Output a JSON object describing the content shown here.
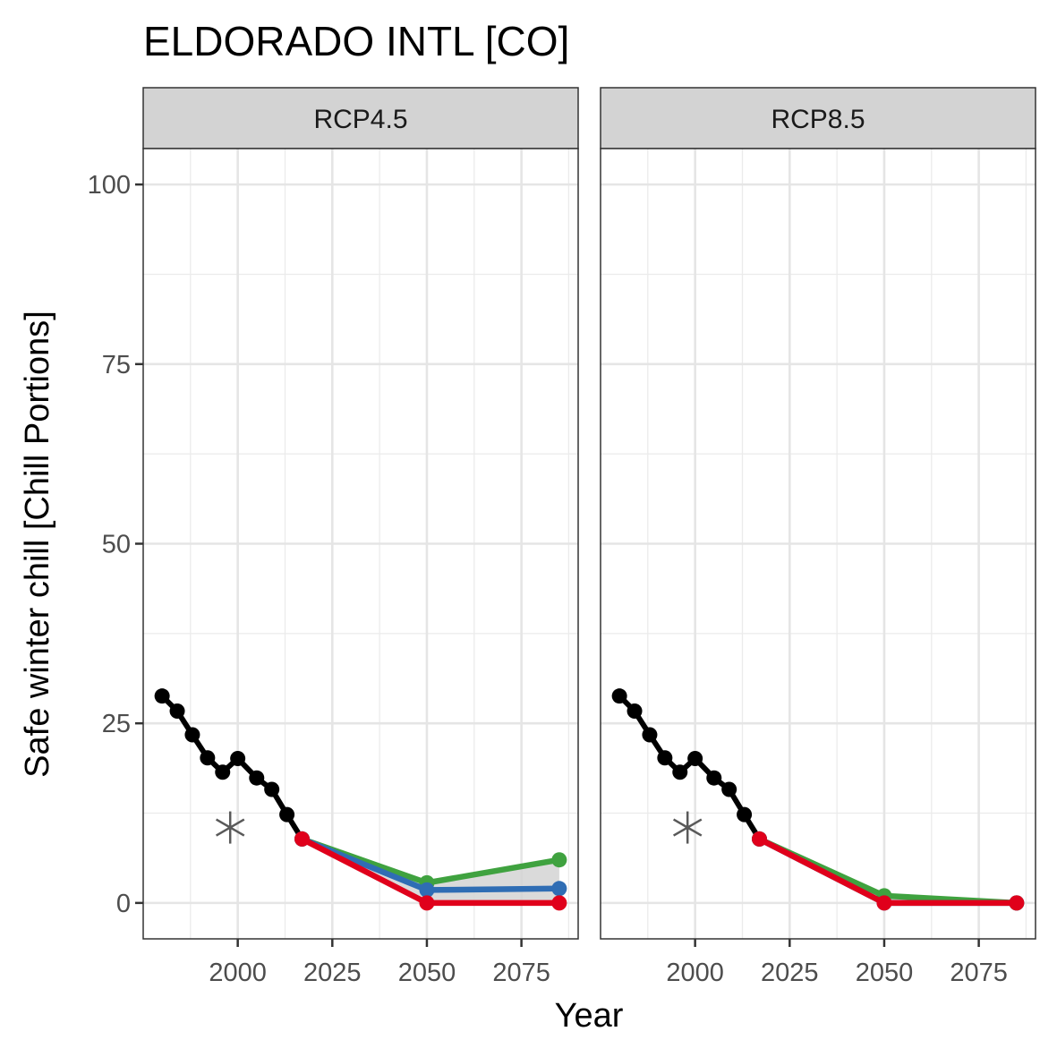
{
  "chart_data": {
    "type": "line",
    "title": "ELDORADO INTL [CO]",
    "xlabel": "Year",
    "ylabel": "Safe winter chill [Chill Portions]",
    "xlim": [
      1975,
      2090
    ],
    "ylim": [
      -5,
      105
    ],
    "x_ticks": [
      2000,
      2025,
      2050,
      2075
    ],
    "y_ticks": [
      0,
      25,
      50,
      75,
      100
    ],
    "grid": true,
    "colors": {
      "historic": "#000000",
      "scenario_high": "#3fa23f",
      "scenario_mid": "#2f6db4",
      "scenario_low": "#e0001b",
      "ribbon": "#d3d3d3",
      "observed_marker": "#595959",
      "strip_fill": "#d3d3d3"
    },
    "historic_marker": {
      "x": 1998,
      "y": 10.5,
      "symbol": "asterisk"
    },
    "panels": [
      {
        "label": "RCP4.5",
        "historic": {
          "x": [
            1980,
            1984,
            1988,
            1992,
            1996,
            2000,
            2005,
            2009,
            2013,
            2017
          ],
          "y": [
            28.8,
            26.7,
            23.4,
            20.2,
            18.2,
            20.1,
            17.4,
            15.8,
            12.3,
            8.9
          ]
        },
        "ribbon": {
          "x": [
            2017,
            2050,
            2085
          ],
          "ymin": [
            8.9,
            0,
            0
          ],
          "ymax": [
            8.9,
            2.8,
            6.0
          ]
        },
        "series": [
          {
            "x": [
              2017,
              2050,
              2085
            ],
            "y": [
              8.9,
              2.8,
              6.0
            ],
            "color": "#3fa23f"
          },
          {
            "x": [
              2017,
              2050,
              2085
            ],
            "y": [
              8.9,
              1.8,
              2.0
            ],
            "color": "#2f6db4"
          },
          {
            "x": [
              2017,
              2050,
              2085
            ],
            "y": [
              8.9,
              0.0,
              0.0
            ],
            "color": "#e0001b"
          }
        ]
      },
      {
        "label": "RCP8.5",
        "historic": {
          "x": [
            1980,
            1984,
            1988,
            1992,
            1996,
            2000,
            2005,
            2009,
            2013,
            2017
          ],
          "y": [
            28.8,
            26.7,
            23.4,
            20.2,
            18.2,
            20.1,
            17.4,
            15.8,
            12.3,
            8.9
          ]
        },
        "ribbon": {
          "x": [
            2017,
            2050,
            2085
          ],
          "ymin": [
            8.9,
            0,
            0
          ],
          "ymax": [
            8.9,
            1.0,
            0.0
          ]
        },
        "series": [
          {
            "x": [
              2017,
              2050,
              2085
            ],
            "y": [
              8.9,
              1.0,
              0.0
            ],
            "color": "#3fa23f"
          },
          {
            "x": [
              2017,
              2050,
              2085
            ],
            "y": [
              8.9,
              0.0,
              0.0
            ],
            "color": "#2f6db4"
          },
          {
            "x": [
              2017,
              2050,
              2085
            ],
            "y": [
              8.9,
              0.0,
              0.0
            ],
            "color": "#e0001b"
          }
        ]
      }
    ]
  }
}
